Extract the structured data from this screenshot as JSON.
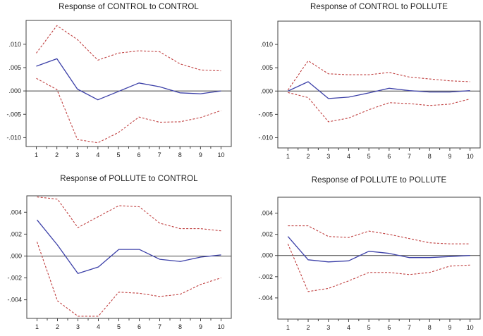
{
  "figure": {
    "kind": "impulse-response-grid",
    "background": "#ffffff"
  },
  "colors": {
    "response_line": "#3c40a8",
    "band_line": "#c04040",
    "zero_line": "#404040",
    "frame": "#404040",
    "text": "#1c1c1c"
  },
  "chart_data": [
    {
      "type": "line",
      "title": "Response of CONTROL to CONTROL",
      "x": [
        1,
        2,
        3,
        4,
        5,
        6,
        7,
        8,
        9,
        10
      ],
      "xlim": [
        0.5,
        10.5
      ],
      "ylim": [
        -0.0119,
        0.0151
      ],
      "yticks": [
        0.01,
        0.005,
        0.0,
        -0.005,
        -0.01
      ],
      "ytick_labels": [
        ".010",
        ".005",
        ".000",
        "-.005",
        "-.010"
      ],
      "xtick_labels": [
        "1",
        "2",
        "3",
        "4",
        "5",
        "6",
        "7",
        "8",
        "9",
        "10"
      ],
      "grid": false,
      "zero_line": true,
      "legend": "none",
      "series": [
        {
          "name": "upper-band",
          "style": "dashed",
          "color": "band_line",
          "values": [
            0.0081,
            0.014,
            0.011,
            0.0066,
            0.0081,
            0.0086,
            0.0084,
            0.0058,
            0.0045,
            0.0043
          ]
        },
        {
          "name": "lower-band",
          "style": "dashed",
          "color": "band_line",
          "values": [
            0.0027,
            0.0003,
            -0.0104,
            -0.0111,
            -0.0089,
            -0.0056,
            -0.0067,
            -0.0066,
            -0.0057,
            -0.0042
          ]
        },
        {
          "name": "response",
          "style": "solid",
          "color": "response_line",
          "values": [
            0.0053,
            0.0069,
            0.0004,
            -0.0019,
            -0.0001,
            0.0017,
            0.0009,
            -0.0004,
            -0.0006,
            0.0
          ]
        }
      ]
    },
    {
      "type": "line",
      "title": "Response of CONTROL to POLLUTE",
      "x": [
        1,
        2,
        3,
        4,
        5,
        6,
        7,
        8,
        9,
        10
      ],
      "xlim": [
        0.5,
        10.5
      ],
      "ylim": [
        -0.0122,
        0.015
      ],
      "yticks": [
        0.01,
        0.005,
        0.0,
        -0.005,
        -0.01
      ],
      "ytick_labels": [
        ".010",
        ".005",
        ".000",
        "-.005",
        "-.010"
      ],
      "xtick_labels": [
        "1",
        "2",
        "3",
        "4",
        "5",
        "6",
        "7",
        "8",
        "9",
        "10"
      ],
      "grid": false,
      "zero_line": true,
      "legend": "none",
      "series": [
        {
          "name": "upper-band",
          "style": "dashed",
          "color": "band_line",
          "values": [
            0.0002,
            0.0065,
            0.0037,
            0.0035,
            0.0035,
            0.004,
            0.003,
            0.0026,
            0.0022,
            0.002
          ]
        },
        {
          "name": "lower-band",
          "style": "dashed",
          "color": "band_line",
          "values": [
            -0.0003,
            -0.0014,
            -0.0066,
            -0.0058,
            -0.004,
            -0.0025,
            -0.0027,
            -0.0031,
            -0.0028,
            -0.0017
          ]
        },
        {
          "name": "response",
          "style": "solid",
          "color": "response_line",
          "values": [
            0.0,
            0.002,
            -0.0016,
            -0.0013,
            -0.0004,
            0.0006,
            0.0001,
            -0.0002,
            -0.0002,
            0.0001
          ]
        }
      ]
    },
    {
      "type": "line",
      "title": "Response of POLLUTE to CONTROL",
      "x": [
        1,
        2,
        3,
        4,
        5,
        6,
        7,
        8,
        9,
        10
      ],
      "xlim": [
        0.5,
        10.5
      ],
      "ylim": [
        -0.0057,
        0.0055
      ],
      "yticks": [
        0.004,
        0.002,
        0.0,
        -0.002,
        -0.004
      ],
      "ytick_labels": [
        ".004",
        ".002",
        ".000",
        "-.002",
        "-.004"
      ],
      "xtick_labels": [
        "1",
        "2",
        "3",
        "4",
        "5",
        "6",
        "7",
        "8",
        "9",
        "10"
      ],
      "grid": false,
      "zero_line": true,
      "legend": "none",
      "series": [
        {
          "name": "upper-band",
          "style": "dashed",
          "color": "band_line",
          "values": [
            0.0054,
            0.0052,
            0.0026,
            0.0036,
            0.0046,
            0.0045,
            0.003,
            0.0025,
            0.0025,
            0.0023
          ]
        },
        {
          "name": "lower-band",
          "style": "dashed",
          "color": "band_line",
          "values": [
            0.0013,
            -0.0041,
            -0.0055,
            -0.0055,
            -0.0033,
            -0.0034,
            -0.0037,
            -0.0035,
            -0.0026,
            -0.002
          ]
        },
        {
          "name": "response",
          "style": "solid",
          "color": "response_line",
          "values": [
            0.0033,
            0.001,
            -0.0016,
            -0.001,
            0.0006,
            0.0006,
            -0.0003,
            -0.0005,
            -0.0001,
            0.0001
          ]
        }
      ]
    },
    {
      "type": "line",
      "title": "Response of POLLUTE to POLLUTE",
      "x": [
        1,
        2,
        3,
        4,
        5,
        6,
        7,
        8,
        9,
        10
      ],
      "xlim": [
        0.5,
        10.5
      ],
      "ylim": [
        -0.006,
        0.0055
      ],
      "yticks": [
        0.004,
        0.002,
        0.0,
        -0.002,
        -0.004
      ],
      "ytick_labels": [
        ".004",
        ".002",
        ".000",
        "-.002",
        "-.004"
      ],
      "xtick_labels": [
        "1",
        "2",
        "3",
        "4",
        "5",
        "6",
        "7",
        "8",
        "9",
        "10"
      ],
      "grid": false,
      "zero_line": true,
      "legend": "none",
      "series": [
        {
          "name": "upper-band",
          "style": "dashed",
          "color": "band_line",
          "values": [
            0.0028,
            0.0028,
            0.0018,
            0.0017,
            0.0023,
            0.002,
            0.0016,
            0.0012,
            0.0011,
            0.0011
          ]
        },
        {
          "name": "lower-band",
          "style": "dashed",
          "color": "band_line",
          "values": [
            0.0011,
            -0.0034,
            -0.0031,
            -0.0024,
            -0.0016,
            -0.0016,
            -0.0018,
            -0.0016,
            -0.001,
            -0.0009
          ]
        },
        {
          "name": "response",
          "style": "solid",
          "color": "response_line",
          "values": [
            0.0018,
            -0.0004,
            -0.0006,
            -0.0005,
            0.0004,
            0.0002,
            -0.0002,
            -0.0002,
            -0.0001,
            0.0
          ]
        }
      ]
    }
  ]
}
